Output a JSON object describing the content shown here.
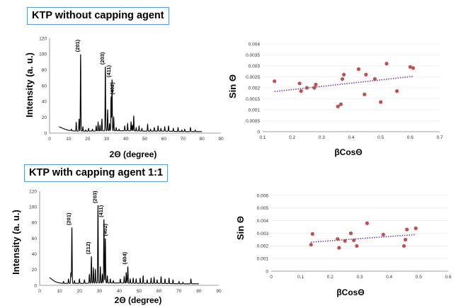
{
  "labels": {
    "top_section": "KTP without capping agent",
    "bottom_section": "KTP with capping agent 1:1"
  },
  "colors": {
    "frame": "#5b9bd5",
    "pattern": "#000000",
    "points": "#c0504d",
    "trend": "#7030a0"
  },
  "chart_data": [
    {
      "id": "xrd-top",
      "type": "line",
      "xlabel": "2Θ (degree)",
      "ylabel": "Intensity (a. u.)",
      "xlim": [
        0,
        90
      ],
      "ylim": [
        0,
        120
      ],
      "xticks": [
        0,
        10,
        20,
        30,
        40,
        50,
        60,
        70,
        80,
        90
      ],
      "yticks": [
        0,
        20,
        40,
        60,
        80,
        100,
        120
      ],
      "baseline": [
        [
          5,
          8
        ],
        [
          6,
          7
        ],
        [
          7,
          6
        ],
        [
          8,
          5
        ],
        [
          10,
          3.5
        ],
        [
          12,
          3
        ],
        [
          14,
          2.5
        ],
        [
          20,
          2.5
        ],
        [
          30,
          3
        ],
        [
          40,
          3
        ],
        [
          50,
          2.5
        ],
        [
          60,
          2.5
        ],
        [
          70,
          2
        ],
        [
          80,
          2
        ]
      ],
      "peaks": [
        [
          11.5,
          5
        ],
        [
          14,
          14
        ],
        [
          15.5,
          18
        ],
        [
          16.3,
          100
        ],
        [
          17.5,
          8
        ],
        [
          19,
          4
        ],
        [
          20.5,
          6
        ],
        [
          22.5,
          5
        ],
        [
          24.5,
          9
        ],
        [
          25.5,
          14
        ],
        [
          26.5,
          10
        ],
        [
          27.5,
          18
        ],
        [
          29.3,
          84
        ],
        [
          30.5,
          30
        ],
        [
          31.5,
          12
        ],
        [
          32.3,
          46
        ],
        [
          32.8,
          68
        ],
        [
          33.7,
          20
        ],
        [
          35,
          7
        ],
        [
          36.5,
          5
        ],
        [
          39.5,
          9
        ],
        [
          41,
          12
        ],
        [
          42.8,
          14
        ],
        [
          43.5,
          10
        ],
        [
          44.2,
          22
        ],
        [
          45.5,
          7
        ],
        [
          47,
          9
        ],
        [
          48.5,
          6
        ],
        [
          51.5,
          11
        ],
        [
          53,
          5
        ],
        [
          55,
          7
        ],
        [
          57,
          9
        ],
        [
          58.5,
          6
        ],
        [
          60.5,
          8
        ],
        [
          62.5,
          9
        ],
        [
          65,
          6
        ],
        [
          67.5,
          7
        ],
        [
          69.5,
          4
        ],
        [
          71,
          5
        ],
        [
          74,
          7
        ],
        [
          76.5,
          4
        ]
      ],
      "annotations": [
        {
          "text": "(201)",
          "x": 16.3,
          "y": 100
        },
        {
          "text": "(203)",
          "x": 29.3,
          "y": 84
        },
        {
          "text": "(411)",
          "x": 32.8,
          "y": 68
        },
        {
          "text": "(402)",
          "x": 34.5,
          "y": 46
        }
      ]
    },
    {
      "id": "wh-top",
      "type": "scatter",
      "xlabel": "βCosΘ",
      "ylabel": "Sin Θ",
      "xlim": [
        0.1,
        0.7
      ],
      "ylim": [
        0,
        0.004
      ],
      "xticks": [
        0.1,
        0.2,
        0.3,
        0.4,
        0.5,
        0.6,
        0.7
      ],
      "yticks": [
        0,
        0.0005,
        0.001,
        0.0015,
        0.002,
        0.0025,
        0.003,
        0.0035,
        0.004
      ],
      "x": [
        0.14,
        0.225,
        0.23,
        0.25,
        0.275,
        0.28,
        0.355,
        0.365,
        0.37,
        0.375,
        0.425,
        0.445,
        0.45,
        0.48,
        0.5,
        0.52,
        0.555,
        0.6,
        0.61
      ],
      "y": [
        0.0023,
        0.0022,
        0.00185,
        0.002,
        0.002,
        0.00215,
        0.00115,
        0.00125,
        0.0024,
        0.0026,
        0.00285,
        0.0017,
        0.0026,
        0.0024,
        0.00135,
        0.0031,
        0.00185,
        0.00295,
        0.0029
      ],
      "trend": {
        "x": [
          0.14,
          0.61
        ],
        "y": [
          0.00183,
          0.00252
        ]
      }
    },
    {
      "id": "xrd-bot",
      "type": "line",
      "xlabel": "2Θ (degree)",
      "ylabel": "Intensity (a. u.)",
      "xlim": [
        0,
        90
      ],
      "ylim": [
        0,
        120
      ],
      "xticks": [
        0,
        10,
        20,
        30,
        40,
        50,
        60,
        70,
        80,
        90
      ],
      "yticks": [
        0,
        20,
        40,
        60,
        80,
        100,
        120
      ],
      "baseline": [
        [
          5,
          10
        ],
        [
          6,
          8
        ],
        [
          7,
          6
        ],
        [
          8,
          4.5
        ],
        [
          10,
          3
        ],
        [
          12,
          2.5
        ],
        [
          14,
          2.5
        ],
        [
          20,
          2.5
        ],
        [
          30,
          3
        ],
        [
          40,
          3
        ],
        [
          50,
          2.5
        ],
        [
          60,
          2.5
        ],
        [
          70,
          2
        ],
        [
          80,
          2
        ]
      ],
      "peaks": [
        [
          12,
          5
        ],
        [
          14.5,
          8
        ],
        [
          15.7,
          16
        ],
        [
          16.2,
          74
        ],
        [
          17.5,
          6
        ],
        [
          20,
          8
        ],
        [
          22.5,
          7
        ],
        [
          25,
          14
        ],
        [
          26,
          37
        ],
        [
          27,
          22
        ],
        [
          28,
          20
        ],
        [
          29.3,
          102
        ],
        [
          30.5,
          24
        ],
        [
          31.5,
          14
        ],
        [
          32.3,
          84
        ],
        [
          33,
          60
        ],
        [
          34,
          12
        ],
        [
          35.5,
          8
        ],
        [
          37,
          6
        ],
        [
          40.5,
          8
        ],
        [
          42.5,
          11
        ],
        [
          43.5,
          16
        ],
        [
          44.3,
          24
        ],
        [
          45.5,
          8
        ],
        [
          47,
          9
        ],
        [
          48.5,
          8
        ],
        [
          50.5,
          9
        ],
        [
          52,
          12
        ],
        [
          54,
          7
        ],
        [
          56,
          9
        ],
        [
          57.5,
          10
        ],
        [
          59,
          7
        ],
        [
          61,
          11
        ],
        [
          63,
          8
        ],
        [
          65,
          9
        ],
        [
          67,
          7
        ],
        [
          70,
          5
        ],
        [
          72,
          4
        ],
        [
          76,
          8
        ]
      ],
      "annotations": [
        {
          "text": "(201)",
          "x": 16.2,
          "y": 74
        },
        {
          "text": "(212)",
          "x": 26,
          "y": 37
        },
        {
          "text": "(203)",
          "x": 29.3,
          "y": 102
        },
        {
          "text": "(411)",
          "x": 32.3,
          "y": 84
        },
        {
          "text": "(402)",
          "x": 34.5,
          "y": 60
        },
        {
          "text": "(404)",
          "x": 44.3,
          "y": 24
        }
      ]
    },
    {
      "id": "wh-bot",
      "type": "scatter",
      "xlabel": "βCosΘ",
      "ylabel": "Sin Θ",
      "xlim": [
        0,
        0.6
      ],
      "ylim": [
        0,
        0.006
      ],
      "xticks": [
        0,
        0.1,
        0.2,
        0.3,
        0.4,
        0.5,
        0.6
      ],
      "yticks": [
        0,
        0.001,
        0.002,
        0.003,
        0.004,
        0.005,
        0.006
      ],
      "x": [
        0.135,
        0.14,
        0.225,
        0.23,
        0.25,
        0.27,
        0.28,
        0.29,
        0.325,
        0.38,
        0.45,
        0.455,
        0.46,
        0.49
      ],
      "y": [
        0.0021,
        0.00295,
        0.00255,
        0.00185,
        0.0024,
        0.003,
        0.00245,
        0.002,
        0.0038,
        0.0029,
        0.002,
        0.0025,
        0.0033,
        0.0034
      ],
      "trend": {
        "x": [
          0.135,
          0.49
        ],
        "y": [
          0.0023,
          0.0029
        ]
      }
    }
  ]
}
